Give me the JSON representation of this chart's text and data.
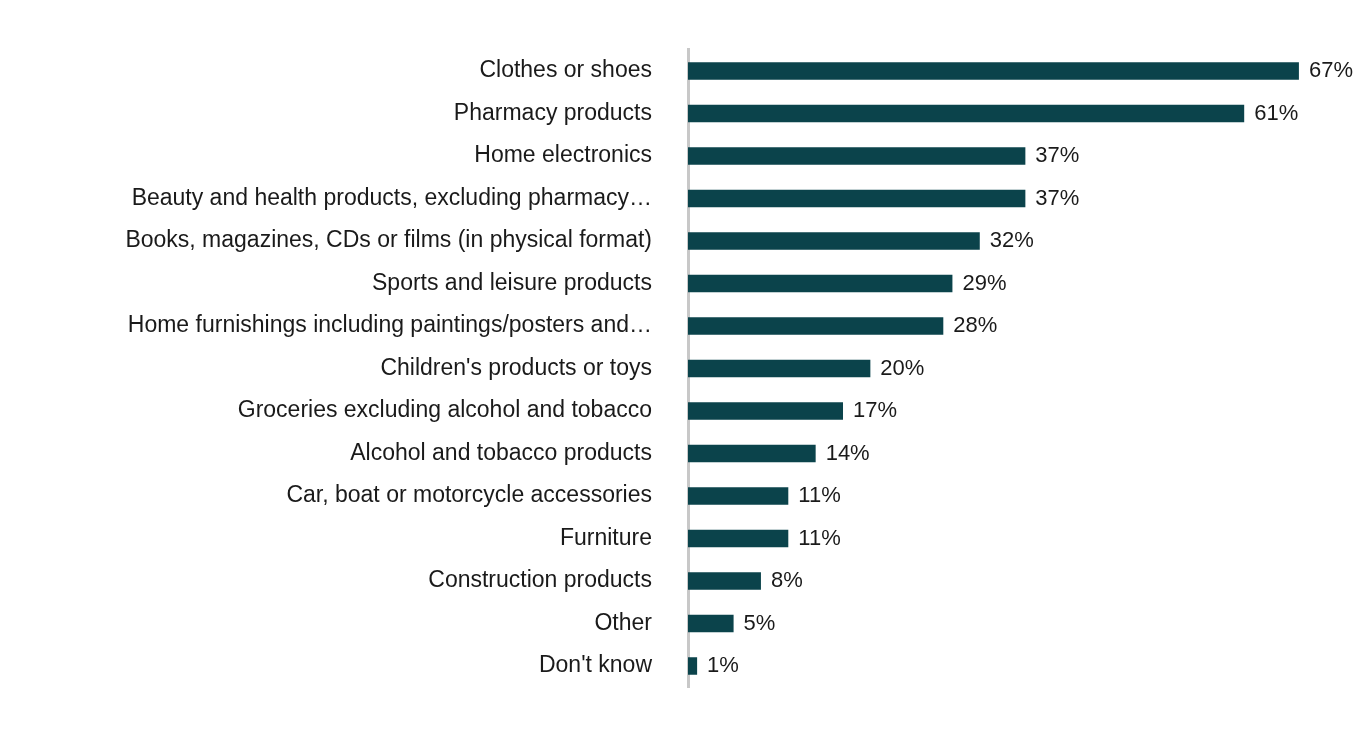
{
  "chart_data": {
    "type": "bar",
    "orientation": "horizontal",
    "categories": [
      "Clothes or shoes",
      "Pharmacy products",
      "Home electronics",
      "Beauty and health products, excluding pharmacy…",
      "Books, magazines, CDs or films (in physical format)",
      "Sports and leisure products",
      "Home furnishings including paintings/posters and…",
      "Children's products or toys",
      "Groceries excluding alcohol and tobacco",
      "Alcohol and tobacco products",
      "Car, boat or motorcycle accessories",
      "Furniture",
      "Construction products",
      "Other",
      "Don't know"
    ],
    "values": [
      67,
      61,
      37,
      37,
      32,
      29,
      28,
      20,
      17,
      14,
      11,
      11,
      8,
      5,
      1
    ],
    "value_labels": [
      "67%",
      "61%",
      "37%",
      "37%",
      "32%",
      "29%",
      "28%",
      "20%",
      "17%",
      "14%",
      "11%",
      "11%",
      "8%",
      "5%",
      "1%"
    ],
    "color": "#0b434b",
    "grid": false,
    "legend": false,
    "tick_labels": "y"
  }
}
